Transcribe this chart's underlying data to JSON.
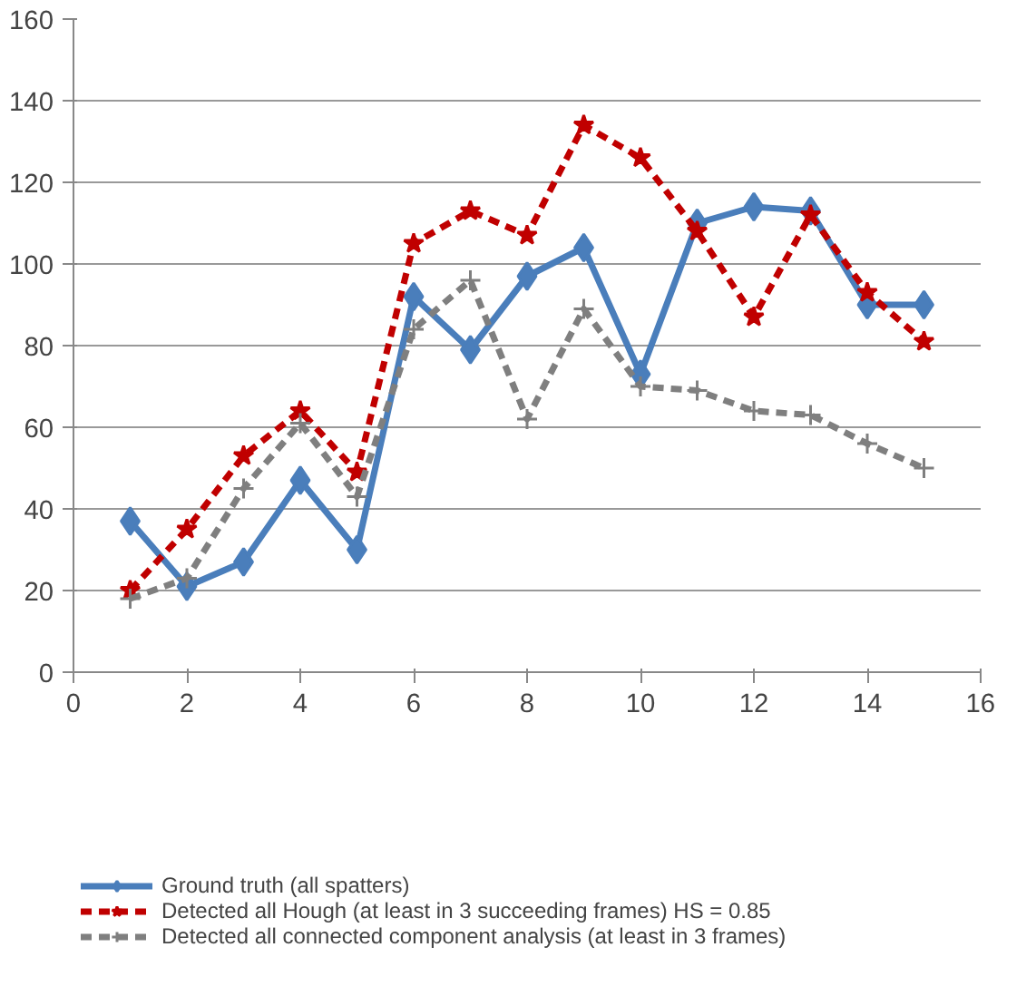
{
  "chart_data": {
    "type": "line",
    "x": [
      1,
      2,
      3,
      4,
      5,
      6,
      7,
      8,
      9,
      10,
      11,
      12,
      13,
      14,
      15
    ],
    "xlim": [
      0,
      16
    ],
    "xticks": [
      0,
      2,
      4,
      6,
      8,
      10,
      12,
      14,
      16
    ],
    "ylim": [
      0,
      160
    ],
    "yticks": [
      0,
      20,
      40,
      60,
      80,
      100,
      120,
      140,
      160
    ],
    "grid": "y",
    "legend": "bottom",
    "series": [
      {
        "name": "Ground truth (all spatters)",
        "color": "#4a7ebb",
        "marker": "diamond",
        "line_style": "solid",
        "values": [
          37,
          21,
          27,
          47,
          30,
          92,
          79,
          97,
          104,
          73,
          110,
          114,
          113,
          90,
          90
        ]
      },
      {
        "name": "Detected all Hough (at least in 3 succeeding frames) HS = 0.85",
        "color": "#c00000",
        "marker": "star",
        "line_style": "dashed",
        "values": [
          20,
          35,
          53,
          64,
          49,
          105,
          113,
          107,
          134,
          126,
          108,
          87,
          112,
          93,
          81
        ]
      },
      {
        "name": "Detected all connected component analysis (at least in 3 frames)",
        "color": "#7f7f7f",
        "marker": "cross",
        "line_style": "dashed",
        "values": [
          18,
          23,
          45,
          61,
          43,
          84,
          96,
          62,
          89,
          70,
          69,
          64,
          63,
          56,
          50
        ]
      }
    ]
  }
}
